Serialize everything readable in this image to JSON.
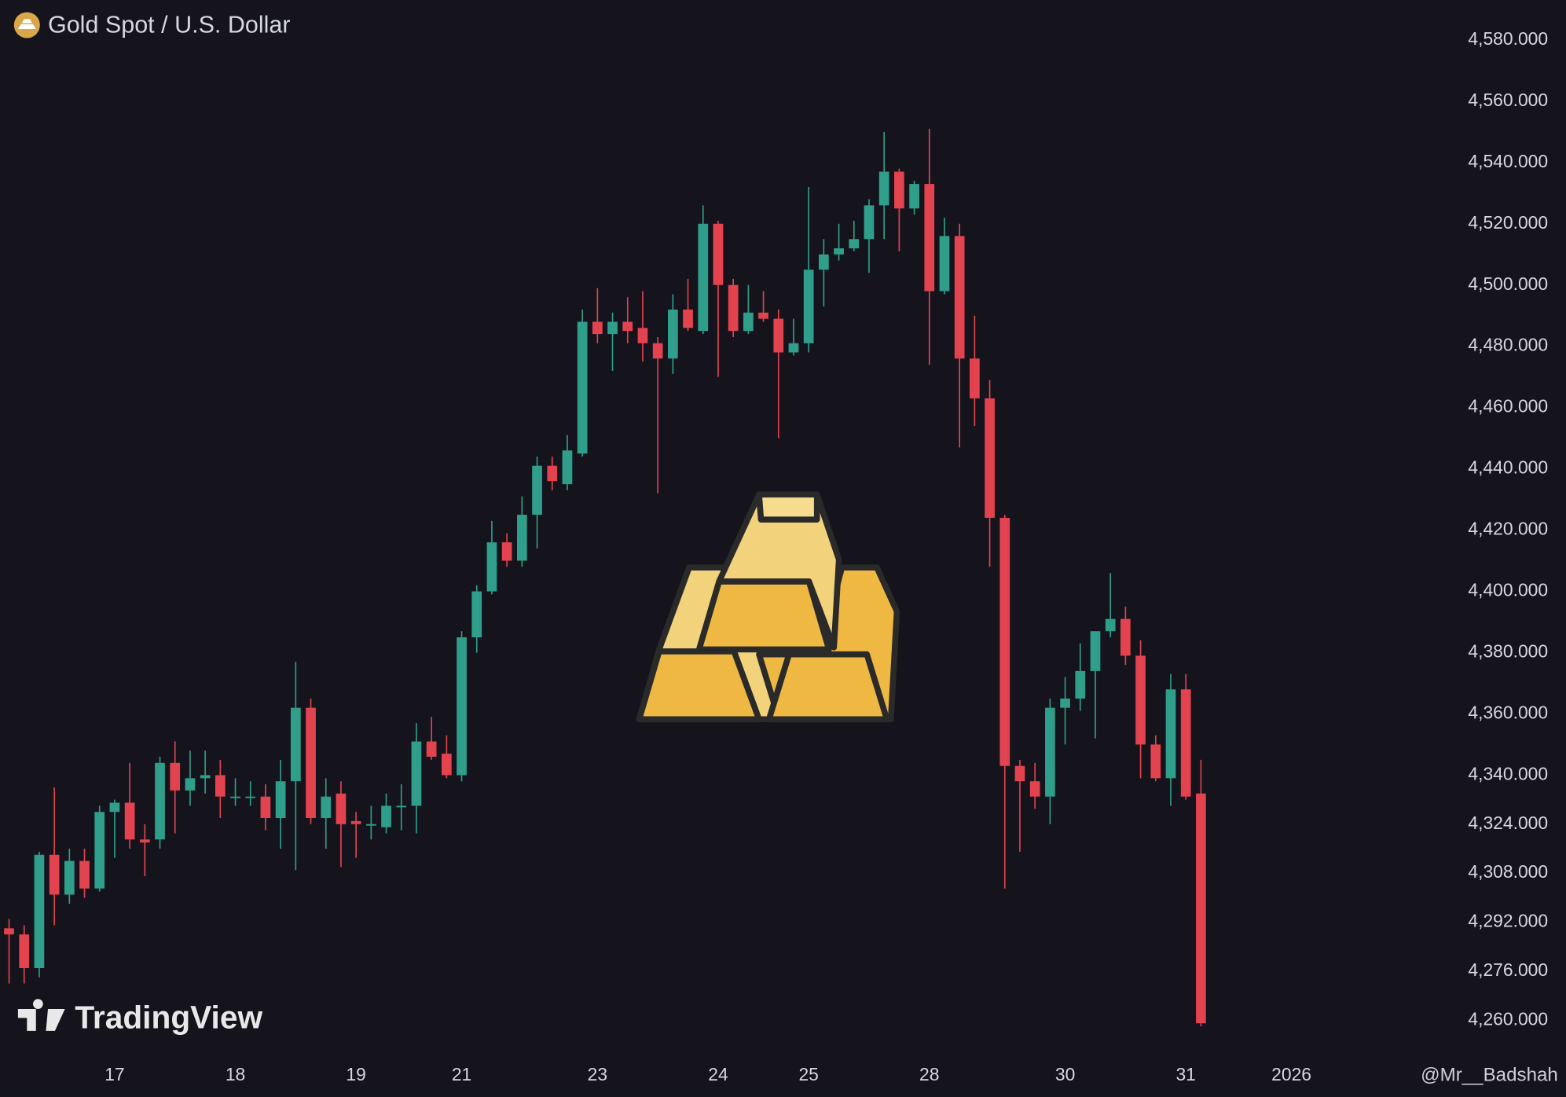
{
  "chart_data": {
    "type": "candlestick",
    "title": "Gold Spot / U.S. Dollar",
    "source_logo": "TradingView",
    "watermark": "@Mr__Badshah",
    "up_color": "#2f9e8a",
    "down_color": "#e2434f",
    "x": [
      0,
      1,
      2,
      3,
      4,
      5,
      6,
      7,
      8,
      9,
      10,
      11,
      12,
      13,
      14,
      15,
      16,
      17,
      18,
      19,
      20,
      21,
      22,
      23,
      24,
      25,
      26,
      27,
      28,
      29,
      30,
      31,
      32,
      33,
      34,
      35,
      36,
      37,
      38,
      39,
      40,
      41,
      42,
      43,
      44,
      45,
      46,
      47,
      48,
      49,
      50,
      51,
      52,
      53,
      54,
      55,
      56,
      57,
      58,
      59,
      60,
      61,
      62,
      63,
      64,
      65,
      66,
      67,
      68,
      69,
      70,
      71,
      72,
      73,
      74,
      75,
      76,
      77,
      78,
      79
    ],
    "open": [
      4290,
      4288,
      4277,
      4314,
      4301,
      4312,
      4303,
      4328,
      4331,
      4319,
      4319,
      4344,
      4335,
      4339,
      4340,
      4333,
      4333,
      4333,
      4326,
      4338,
      4362,
      4326,
      4334,
      4325,
      4324,
      4323,
      4330,
      4330,
      4351,
      4347,
      4340,
      4385,
      4400,
      4416,
      4410,
      4425,
      4441,
      4435,
      4445,
      4488,
      4484,
      4488,
      4486,
      4481,
      4476,
      4492,
      4485,
      4520,
      4500,
      4485,
      4491,
      4489,
      4478,
      4481,
      4505,
      4510,
      4512,
      4515,
      4526,
      4537,
      4525,
      4533,
      4498,
      4516,
      4476,
      4463,
      4424,
      4343,
      4338,
      4333,
      4362,
      4365,
      4374,
      4387,
      4391,
      4379,
      4350,
      4339,
      4368,
      4334
    ],
    "high": [
      4293,
      4291,
      4315,
      4336,
      4316,
      4316,
      4330,
      4332,
      4344,
      4324,
      4346,
      4351,
      4348,
      4348,
      4345,
      4339,
      4338,
      4337,
      4345,
      4377,
      4365,
      4339,
      4338,
      4328,
      4330,
      4334,
      4337,
      4357,
      4359,
      4353,
      4387,
      4402,
      4423,
      4419,
      4431,
      4444,
      4444,
      4451,
      4492,
      4499,
      4491,
      4496,
      4498,
      4483,
      4497,
      4502,
      4526,
      4521,
      4502,
      4500,
      4498,
      4492,
      4489,
      4532,
      4515,
      4520,
      4521,
      4528,
      4550,
      4538,
      4534,
      4551,
      4522,
      4520,
      4490,
      4469,
      4425,
      4345,
      4344,
      4365,
      4372,
      4383,
      4387,
      4406,
      4395,
      4384,
      4353,
      4373,
      4373,
      4345
    ],
    "low": [
      4272,
      4272,
      4274,
      4291,
      4298,
      4300,
      4302,
      4313,
      4316,
      4307,
      4316,
      4321,
      4330,
      4334,
      4326,
      4330,
      4330,
      4322,
      4316,
      4309,
      4324,
      4316,
      4310,
      4313,
      4319,
      4321,
      4322,
      4321,
      4345,
      4339,
      4338,
      4380,
      4399,
      4408,
      4408,
      4414,
      4433,
      4433,
      4444,
      4481,
      4472,
      4481,
      4475,
      4432,
      4471,
      4485,
      4484,
      4470,
      4483,
      4484,
      4488,
      4450,
      4477,
      4478,
      4493,
      4508,
      4511,
      4504,
      4515,
      4511,
      4523,
      4474,
      4497,
      4447,
      4454,
      4408,
      4303,
      4315,
      4329,
      4324,
      4350,
      4361,
      4352,
      4385,
      4376,
      4339,
      4338,
      4330,
      4332,
      4258
    ],
    "close": [
      4288,
      4277,
      4314,
      4301,
      4312,
      4303,
      4328,
      4331,
      4319,
      4318,
      4344,
      4335,
      4339,
      4340,
      4333,
      4333,
      4333,
      4326,
      4338,
      4362,
      4326,
      4333,
      4324,
      4324,
      4324,
      4330,
      4330,
      4351,
      4346,
      4340,
      4385,
      4400,
      4416,
      4410,
      4425,
      4441,
      4436,
      4446,
      4488,
      4484,
      4488,
      4485,
      4481,
      4476,
      4492,
      4486,
      4520,
      4500,
      4485,
      4491,
      4489,
      4478,
      4481,
      4505,
      4510,
      4512,
      4515,
      4526,
      4537,
      4525,
      4533,
      4498,
      4516,
      4476,
      4463,
      4424,
      4343,
      4338,
      4333,
      4362,
      4365,
      4374,
      4387,
      4391,
      4379,
      4350,
      4339,
      4368,
      4333,
      4259
    ],
    "xlim": [
      -0.6,
      93.4
    ],
    "xticks": [
      {
        "value": 7,
        "label": "17"
      },
      {
        "value": 15,
        "label": "18"
      },
      {
        "value": 23,
        "label": "19"
      },
      {
        "value": 30,
        "label": "21"
      },
      {
        "value": 39,
        "label": "23"
      },
      {
        "value": 47,
        "label": "24"
      },
      {
        "value": 53,
        "label": "25"
      },
      {
        "value": 61,
        "label": "28"
      },
      {
        "value": 70,
        "label": "30"
      },
      {
        "value": 78,
        "label": "31"
      },
      {
        "value": 85,
        "label": "2026"
      }
    ],
    "ylim": [
      4249,
      4593
    ],
    "yticks": [
      {
        "value": 4580,
        "label": "4,580.000"
      },
      {
        "value": 4560,
        "label": "4,560.000"
      },
      {
        "value": 4540,
        "label": "4,540.000"
      },
      {
        "value": 4520,
        "label": "4,520.000"
      },
      {
        "value": 4500,
        "label": "4,500.000"
      },
      {
        "value": 4480,
        "label": "4,480.000"
      },
      {
        "value": 4460,
        "label": "4,460.000"
      },
      {
        "value": 4440,
        "label": "4,440.000"
      },
      {
        "value": 4420,
        "label": "4,420.000"
      },
      {
        "value": 4400,
        "label": "4,400.000"
      },
      {
        "value": 4380,
        "label": "4,380.000"
      },
      {
        "value": 4360,
        "label": "4,360.000"
      },
      {
        "value": 4340,
        "label": "4,340.000"
      },
      {
        "value": 4324,
        "label": "4,324.000"
      },
      {
        "value": 4308,
        "label": "4,308.000"
      },
      {
        "value": 4292,
        "label": "4,292.000"
      },
      {
        "value": 4276,
        "label": "4,276.000"
      },
      {
        "value": 4260,
        "label": "4,260.000"
      }
    ]
  }
}
